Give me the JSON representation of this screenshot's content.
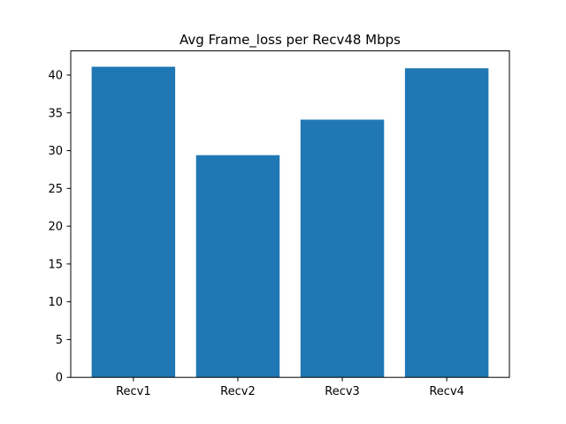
{
  "chart_data": {
    "type": "bar",
    "title": "Avg Frame_loss per Recv48 Mbps",
    "xlabel": "",
    "ylabel": "",
    "categories": [
      "Recv1",
      "Recv2",
      "Recv3",
      "Recv4"
    ],
    "values": [
      41.1,
      29.4,
      34.1,
      40.9
    ],
    "ylim": [
      0,
      43.2
    ],
    "yticks": [
      0,
      5,
      10,
      15,
      20,
      25,
      30,
      35,
      40
    ],
    "grid": false,
    "bar_color": "#1f77b4",
    "legend": "none"
  }
}
